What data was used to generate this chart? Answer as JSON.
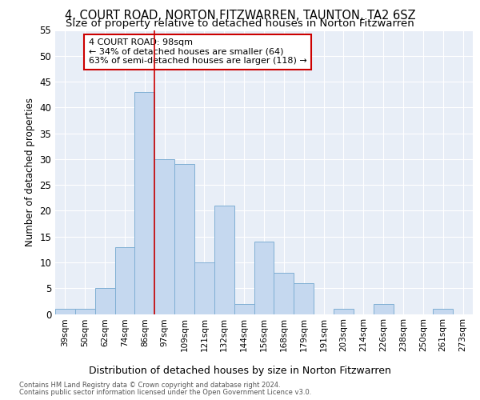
{
  "title": "4, COURT ROAD, NORTON FITZWARREN, TAUNTON, TA2 6SZ",
  "subtitle": "Size of property relative to detached houses in Norton Fitzwarren",
  "xlabel": "Distribution of detached houses by size in Norton Fitzwarren",
  "ylabel": "Number of detached properties",
  "footnote1": "Contains HM Land Registry data © Crown copyright and database right 2024.",
  "footnote2": "Contains public sector information licensed under the Open Government Licence v3.0.",
  "annotation_line1": "4 COURT ROAD: 98sqm",
  "annotation_line2": "← 34% of detached houses are smaller (64)",
  "annotation_line3": "63% of semi-detached houses are larger (118) →",
  "bar_color": "#c5d8ef",
  "bar_edge_color": "#7fafd4",
  "vline_color": "#cc0000",
  "vline_x": 4.5,
  "categories": [
    "39sqm",
    "50sqm",
    "62sqm",
    "74sqm",
    "86sqm",
    "97sqm",
    "109sqm",
    "121sqm",
    "132sqm",
    "144sqm",
    "156sqm",
    "168sqm",
    "179sqm",
    "191sqm",
    "203sqm",
    "214sqm",
    "226sqm",
    "238sqm",
    "250sqm",
    "261sqm",
    "273sqm"
  ],
  "values": [
    1,
    1,
    5,
    13,
    43,
    30,
    29,
    10,
    21,
    2,
    14,
    8,
    6,
    0,
    1,
    0,
    2,
    0,
    0,
    1,
    0
  ],
  "ylim": [
    0,
    55
  ],
  "yticks": [
    0,
    5,
    10,
    15,
    20,
    25,
    30,
    35,
    40,
    45,
    50,
    55
  ],
  "background_color": "#e8eef7",
  "fig_background": "#ffffff",
  "title_fontsize": 10.5,
  "subtitle_fontsize": 9.5,
  "annotation_fontsize": 8,
  "xlabel_fontsize": 9,
  "ylabel_fontsize": 8.5,
  "footnote_fontsize": 6
}
